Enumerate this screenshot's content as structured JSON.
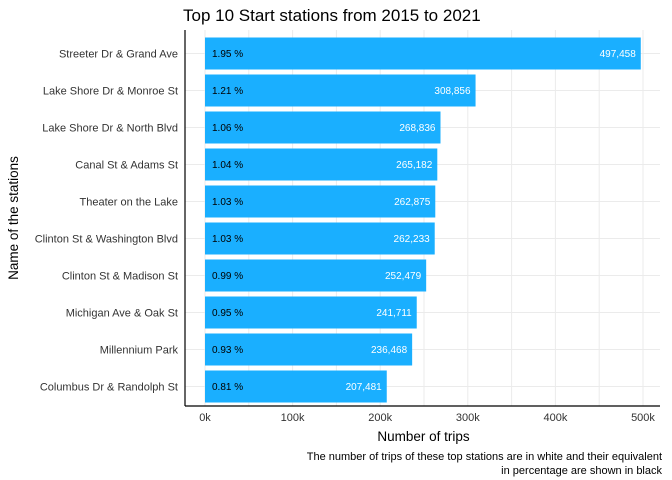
{
  "chart_data": {
    "type": "bar",
    "orientation": "horizontal",
    "title": "Top 10 Start stations from 2015 to 2021",
    "xlabel": "Number of trips",
    "ylabel": "Name of the stations",
    "caption_lines": [
      "The number of trips of these top stations are in white and their equivalent",
      "in percentage are shown in black"
    ],
    "categories": [
      "Streeter Dr & Grand Ave",
      "Lake Shore Dr & Monroe St",
      "Lake Shore Dr & North Blvd",
      "Canal St & Adams St",
      "Theater on the Lake",
      "Clinton St & Washington Blvd",
      "Clinton St & Madison St",
      "Michigan Ave & Oak St",
      "Millennium Park",
      "Columbus Dr & Randolph St"
    ],
    "values": [
      497458,
      308856,
      268836,
      265182,
      262875,
      262233,
      252479,
      241711,
      236468,
      207481
    ],
    "value_labels": [
      "497,458",
      "308,856",
      "268,836",
      "265,182",
      "262,875",
      "262,233",
      "252,479",
      "241,711",
      "236,468",
      "207,481"
    ],
    "percent_labels": [
      "1.95 %",
      "1.21 %",
      "1.06 %",
      "1.04 %",
      "1.03 %",
      "1.03 %",
      "0.99 %",
      "0.95 %",
      "0.93 %",
      "0.81 %"
    ],
    "xlim": [
      0,
      500000
    ],
    "x_ticks": [
      0,
      100000,
      200000,
      300000,
      400000,
      500000
    ],
    "x_tick_labels": [
      "0k",
      "100k",
      "200k",
      "300k",
      "400k",
      "500k"
    ],
    "bar_color": "#1AAFFF",
    "grid": true,
    "legend": "none"
  }
}
